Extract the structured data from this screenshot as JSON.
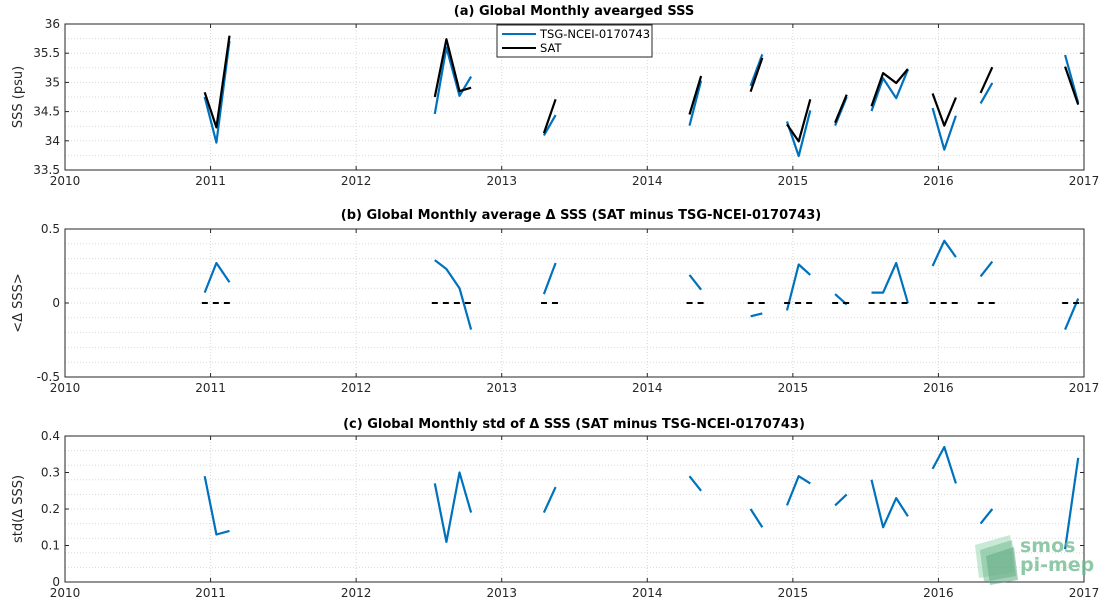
{
  "watermark": {
    "line1": "smos",
    "line2": "pi-mep"
  },
  "colors": {
    "tsg": "#0072BD",
    "sat": "#000000",
    "grid": "#d9d9d9",
    "axis": "#262626",
    "logo": "#6fb98f"
  },
  "chart_data": [
    {
      "type": "line",
      "title": "(a) Global Monthly avearged SSS",
      "xlabel": "",
      "ylabel": "SSS (psu)",
      "xlim": [
        2010,
        2017
      ],
      "ylim": [
        33.5,
        36
      ],
      "xticks": [
        "2010",
        "2011",
        "2012",
        "2013",
        "2014",
        "2015",
        "2016",
        "2017"
      ],
      "yticks": [
        "33.5",
        "34",
        "34.5",
        "35",
        "35.5",
        "36"
      ],
      "grid": true,
      "legend": {
        "position": "top-center",
        "entries": [
          "TSG-NCEI-0170743",
          "SAT"
        ]
      },
      "series": [
        {
          "name": "TSG-NCEI-0170743",
          "color": "#0072BD",
          "segments": [
            [
              [
                2010.96,
                34.75
              ],
              [
                2011.04,
                33.97
              ],
              [
                2011.13,
                35.71
              ]
            ],
            [
              [
                2012.54,
                34.46
              ],
              [
                2012.62,
                35.6
              ],
              [
                2012.71,
                34.77
              ],
              [
                2012.79,
                35.1
              ]
            ],
            [
              [
                2013.29,
                34.09
              ],
              [
                2013.37,
                34.44
              ]
            ],
            [
              [
                2014.29,
                34.26
              ],
              [
                2014.37,
                35.03
              ]
            ],
            [
              [
                2014.71,
                34.94
              ],
              [
                2014.79,
                35.48
              ]
            ],
            [
              [
                2014.96,
                34.33
              ],
              [
                2015.04,
                33.74
              ],
              [
                2015.12,
                34.52
              ]
            ],
            [
              [
                2015.29,
                34.26
              ],
              [
                2015.37,
                34.75
              ]
            ],
            [
              [
                2015.54,
                34.51
              ],
              [
                2015.62,
                35.07
              ],
              [
                2015.71,
                34.73
              ],
              [
                2015.79,
                35.22
              ]
            ],
            [
              [
                2015.96,
                34.56
              ],
              [
                2016.04,
                33.85
              ],
              [
                2016.12,
                34.43
              ]
            ],
            [
              [
                2016.29,
                34.64
              ],
              [
                2016.37,
                34.99
              ]
            ],
            [
              [
                2016.87,
                35.47
              ],
              [
                2016.96,
                34.65
              ]
            ]
          ]
        },
        {
          "name": "SAT",
          "color": "#000000",
          "segments": [
            [
              [
                2010.96,
                34.83
              ],
              [
                2011.04,
                34.23
              ],
              [
                2011.13,
                35.8
              ]
            ],
            [
              [
                2012.54,
                34.75
              ],
              [
                2012.62,
                35.74
              ],
              [
                2012.71,
                34.85
              ],
              [
                2012.79,
                34.91
              ]
            ],
            [
              [
                2013.29,
                34.13
              ],
              [
                2013.37,
                34.71
              ]
            ],
            [
              [
                2014.29,
                34.45
              ],
              [
                2014.37,
                35.11
              ]
            ],
            [
              [
                2014.71,
                34.84
              ],
              [
                2014.79,
                35.42
              ]
            ],
            [
              [
                2014.96,
                34.28
              ],
              [
                2015.04,
                33.99
              ],
              [
                2015.12,
                34.71
              ]
            ],
            [
              [
                2015.29,
                34.31
              ],
              [
                2015.37,
                34.79
              ]
            ],
            [
              [
                2015.54,
                34.59
              ],
              [
                2015.62,
                35.16
              ],
              [
                2015.71,
                34.99
              ],
              [
                2015.79,
                35.23
              ]
            ],
            [
              [
                2015.96,
                34.81
              ],
              [
                2016.04,
                34.26
              ],
              [
                2016.12,
                34.74
              ]
            ],
            [
              [
                2016.29,
                34.82
              ],
              [
                2016.37,
                35.26
              ]
            ],
            [
              [
                2016.87,
                35.27
              ],
              [
                2016.96,
                34.62
              ]
            ]
          ]
        }
      ]
    },
    {
      "type": "line",
      "title": "(b) Global Monthly average Δ SSS (SAT minus TSG-NCEI-0170743)",
      "xlabel": "",
      "ylabel": "<Δ SSS>",
      "xlim": [
        2010,
        2017
      ],
      "ylim": [
        -0.5,
        0.5
      ],
      "xticks": [
        "2010",
        "2011",
        "2012",
        "2013",
        "2014",
        "2015",
        "2016",
        "2017"
      ],
      "yticks": [
        "-0.5",
        "0",
        "0.5"
      ],
      "grid": true,
      "series": [
        {
          "name": "Δ SSS",
          "color": "#0072BD",
          "segments": [
            [
              [
                2010.96,
                0.07
              ],
              [
                2011.04,
                0.27
              ],
              [
                2011.13,
                0.14
              ]
            ],
            [
              [
                2012.54,
                0.29
              ],
              [
                2012.62,
                0.23
              ],
              [
                2012.71,
                0.1
              ],
              [
                2012.79,
                -0.18
              ]
            ],
            [
              [
                2013.29,
                0.06
              ],
              [
                2013.37,
                0.27
              ]
            ],
            [
              [
                2014.29,
                0.19
              ],
              [
                2014.37,
                0.09
              ]
            ],
            [
              [
                2014.71,
                -0.09
              ],
              [
                2014.79,
                -0.07
              ]
            ],
            [
              [
                2014.96,
                -0.05
              ],
              [
                2015.04,
                0.26
              ],
              [
                2015.12,
                0.19
              ]
            ],
            [
              [
                2015.29,
                0.06
              ],
              [
                2015.37,
                -0.01
              ]
            ],
            [
              [
                2015.54,
                0.07
              ],
              [
                2015.62,
                0.07
              ],
              [
                2015.71,
                0.27
              ],
              [
                2015.79,
                0.0
              ]
            ],
            [
              [
                2015.96,
                0.25
              ],
              [
                2016.04,
                0.42
              ],
              [
                2016.12,
                0.31
              ]
            ],
            [
              [
                2016.29,
                0.18
              ],
              [
                2016.37,
                0.28
              ]
            ],
            [
              [
                2016.87,
                -0.18
              ],
              [
                2016.96,
                0.03
              ]
            ]
          ]
        },
        {
          "name": "zero reference",
          "color": "#000000",
          "dashed": true,
          "ranges": [
            [
              2010.94,
              2011.15
            ],
            [
              2012.52,
              2012.8
            ],
            [
              2013.27,
              2013.39
            ],
            [
              2014.27,
              2014.39
            ],
            [
              2014.69,
              2014.81
            ],
            [
              2014.94,
              2015.14
            ],
            [
              2015.27,
              2015.39
            ],
            [
              2015.52,
              2015.81
            ],
            [
              2015.94,
              2016.14
            ],
            [
              2016.27,
              2016.39
            ],
            [
              2016.85,
              2016.97
            ]
          ]
        }
      ]
    },
    {
      "type": "line",
      "title": "(c) Global Monthly std of Δ SSS (SAT minus TSG-NCEI-0170743)",
      "xlabel": "",
      "ylabel": "std(Δ SSS)",
      "xlim": [
        2010,
        2017
      ],
      "ylim": [
        0,
        0.4
      ],
      "xticks": [
        "2010",
        "2011",
        "2012",
        "2013",
        "2014",
        "2015",
        "2016",
        "2017"
      ],
      "yticks": [
        "0",
        "0.1",
        "0.2",
        "0.3",
        "0.4"
      ],
      "grid": true,
      "series": [
        {
          "name": "std",
          "color": "#0072BD",
          "segments": [
            [
              [
                2010.96,
                0.29
              ],
              [
                2011.04,
                0.13
              ],
              [
                2011.13,
                0.14
              ]
            ],
            [
              [
                2012.54,
                0.27
              ],
              [
                2012.62,
                0.11
              ],
              [
                2012.71,
                0.3
              ],
              [
                2012.79,
                0.19
              ]
            ],
            [
              [
                2013.29,
                0.19
              ],
              [
                2013.37,
                0.26
              ]
            ],
            [
              [
                2014.29,
                0.29
              ],
              [
                2014.37,
                0.25
              ]
            ],
            [
              [
                2014.71,
                0.2
              ],
              [
                2014.79,
                0.15
              ]
            ],
            [
              [
                2014.96,
                0.21
              ],
              [
                2015.04,
                0.29
              ],
              [
                2015.12,
                0.27
              ]
            ],
            [
              [
                2015.29,
                0.21
              ],
              [
                2015.37,
                0.24
              ]
            ],
            [
              [
                2015.54,
                0.28
              ],
              [
                2015.62,
                0.15
              ],
              [
                2015.71,
                0.23
              ],
              [
                2015.79,
                0.18
              ]
            ],
            [
              [
                2015.96,
                0.31
              ],
              [
                2016.04,
                0.37
              ],
              [
                2016.12,
                0.27
              ]
            ],
            [
              [
                2016.29,
                0.16
              ],
              [
                2016.37,
                0.2
              ]
            ],
            [
              [
                2016.87,
                0.09
              ],
              [
                2016.96,
                0.34
              ]
            ]
          ]
        }
      ]
    }
  ]
}
